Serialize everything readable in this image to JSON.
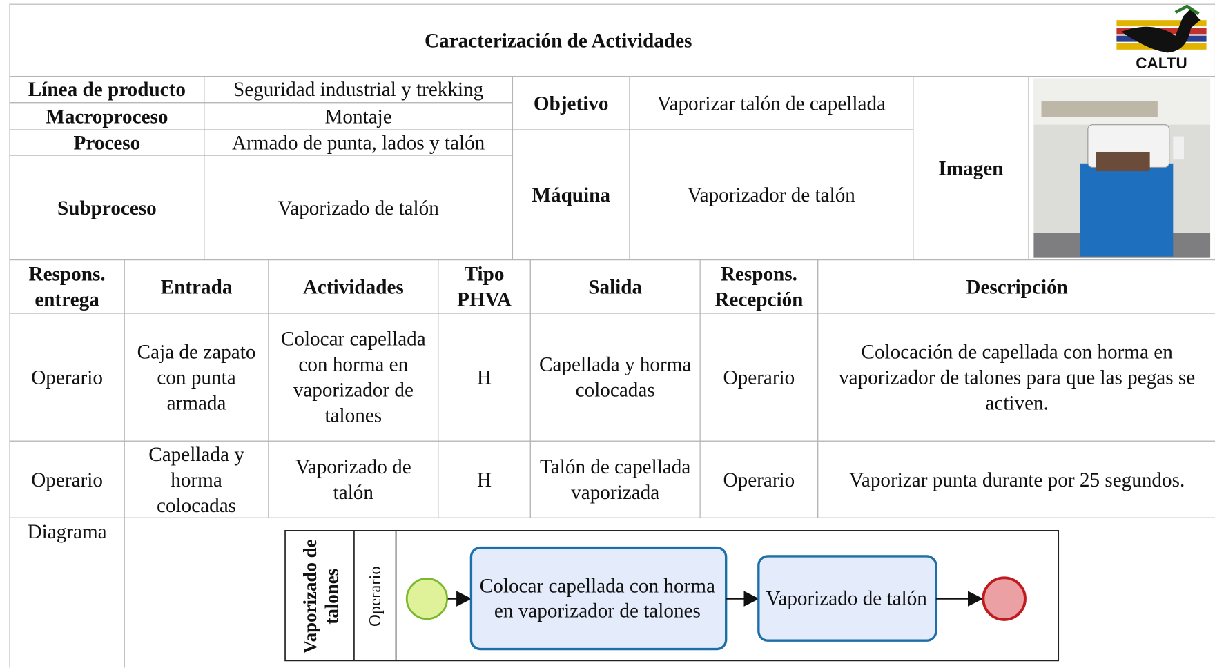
{
  "header": {
    "title": "Caracterización de Actividades",
    "logo_text": "CALTU"
  },
  "info": {
    "rows": [
      {
        "label": "Línea de producto",
        "value": "Seguridad industrial y trekking"
      },
      {
        "label": "Macroproceso",
        "value": "Montaje"
      },
      {
        "label": "Proceso",
        "value": "Armado de punta, lados y talón"
      },
      {
        "label": "Subproceso",
        "value": "Vaporizado de talón"
      }
    ],
    "objetivo": {
      "label": "Objetivo",
      "value": "Vaporizar talón de capellada"
    },
    "maquina": {
      "label": "Máquina",
      "value": "Vaporizador de talón"
    },
    "imagen": {
      "label": "Imagen"
    }
  },
  "table": {
    "columns": [
      "Respons. entrega",
      "Entrada",
      "Actividades",
      "Tipo PHVA",
      "Salida",
      "Respons. Recepción",
      "Descripción"
    ],
    "rows": [
      [
        "Operario",
        "Caja de zapato con punta armada",
        "Colocar capellada con horma en vaporizador de talones",
        "H",
        "Capellada y horma colocadas",
        "Operario",
        "Colocación de capellada con horma en vaporizador de talones para que las pegas se activen."
      ],
      [
        "Operario",
        "Capellada y horma colocadas",
        "Vaporizado de talón",
        "H",
        "Talón de capellada vaporizada",
        "Operario",
        "Vaporizar punta durante por 25 segundos."
      ]
    ]
  },
  "diagram": {
    "label": "Diagrama",
    "pool": "Vaporizado de talones",
    "lane": "Operario",
    "tasks": [
      "Colocar capellada con horma en vaporizador de talones",
      "Vaporizado de talón"
    ]
  }
}
